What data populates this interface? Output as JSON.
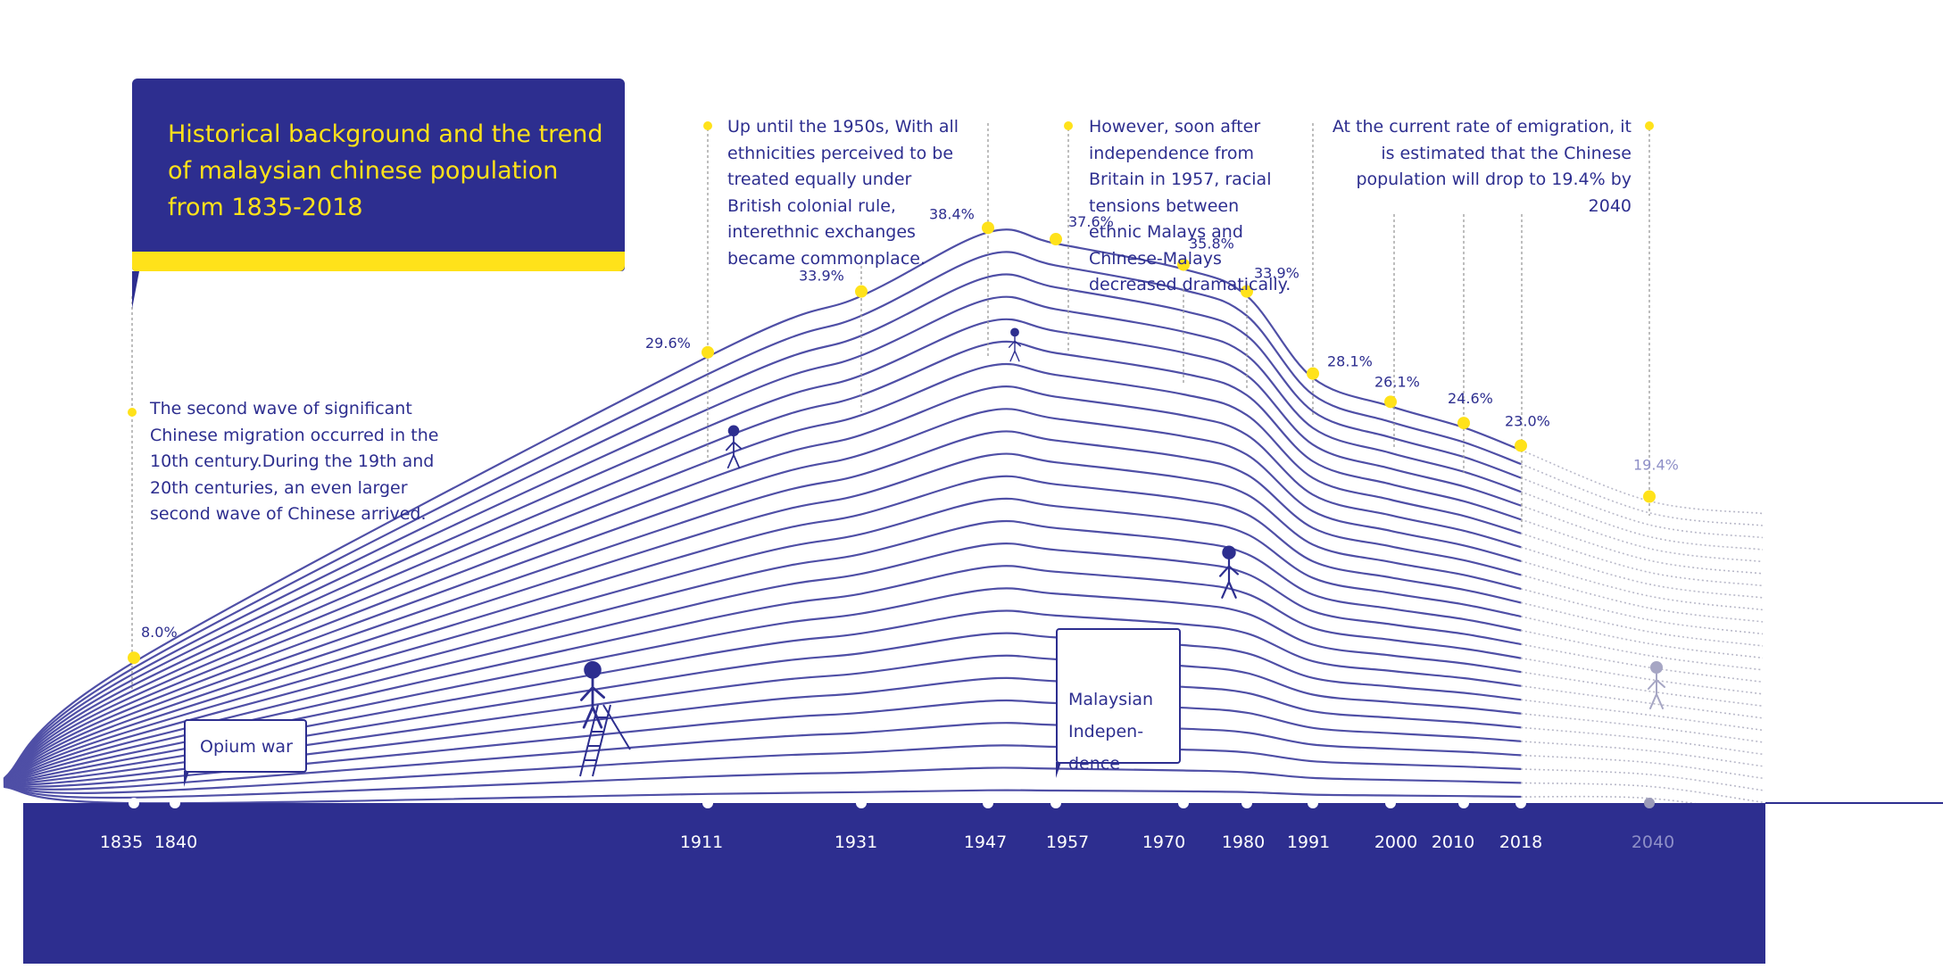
{
  "title": "Historical background and the trend of malaysian chinese population from 1835-2018",
  "annotations": {
    "opium_war": "Opium war",
    "independence": "Malaysian Indepen- dence",
    "note_1835": "The second wave of significant Chinese migration occurred in the 10th century.During the 19th and 20th centuries, an even larger second wave of Chinese arrived.",
    "note_1911": "Up until the 1950s,  With all ethnicities perceived to be treated equally under British colonial rule, interethnic exchanges became commonplace.",
    "note_1957": "However, soon after independence from Britain in 1957, racial tensions between ethnic Malays and Chinese-Malays decreased dramatically.",
    "note_2040": "At the current rate of emigration, it is estimated that the Chinese population will drop to 19.4% by 2040"
  },
  "colors": {
    "primary": "#2d2e8f",
    "accent": "#ffe21a",
    "projection": "#b9b9c9",
    "line": "#4f4fa6"
  },
  "chart_data": {
    "type": "area",
    "title": "Historical background and the trend of malaysian chinese population from 1835-2018",
    "xlabel": "",
    "ylabel": "",
    "x": [
      1835,
      1911,
      1931,
      1947,
      1957,
      1970,
      1980,
      1991,
      2000,
      2010,
      2018,
      2040
    ],
    "x_labels": [
      "1835",
      "1840",
      "1911",
      "1931",
      "1947",
      "1957",
      "1970",
      "1980",
      "1991",
      "2000",
      "2010",
      "2018",
      "2040"
    ],
    "series": [
      {
        "values": [
          8.0,
          29.6,
          33.9,
          38.4,
          37.6,
          35.8,
          33.9,
          28.1,
          26.1,
          24.6,
          23.0,
          19.4
        ],
        "labels": [
          "8.0%",
          "29.6%",
          "33.9%",
          "38.4%",
          "37.6%",
          "35.8%",
          "33.9%",
          "28.1%",
          "26.1%",
          "24.6%",
          "23.0%",
          "19.4%"
        ]
      }
    ],
    "projected_from": 2018,
    "projected_year": 2040,
    "events": [
      {
        "year": 1840,
        "label": "Opium war"
      },
      {
        "year": 1957,
        "label": "Malaysian Independence"
      }
    ],
    "grid": false,
    "legend": "none"
  }
}
